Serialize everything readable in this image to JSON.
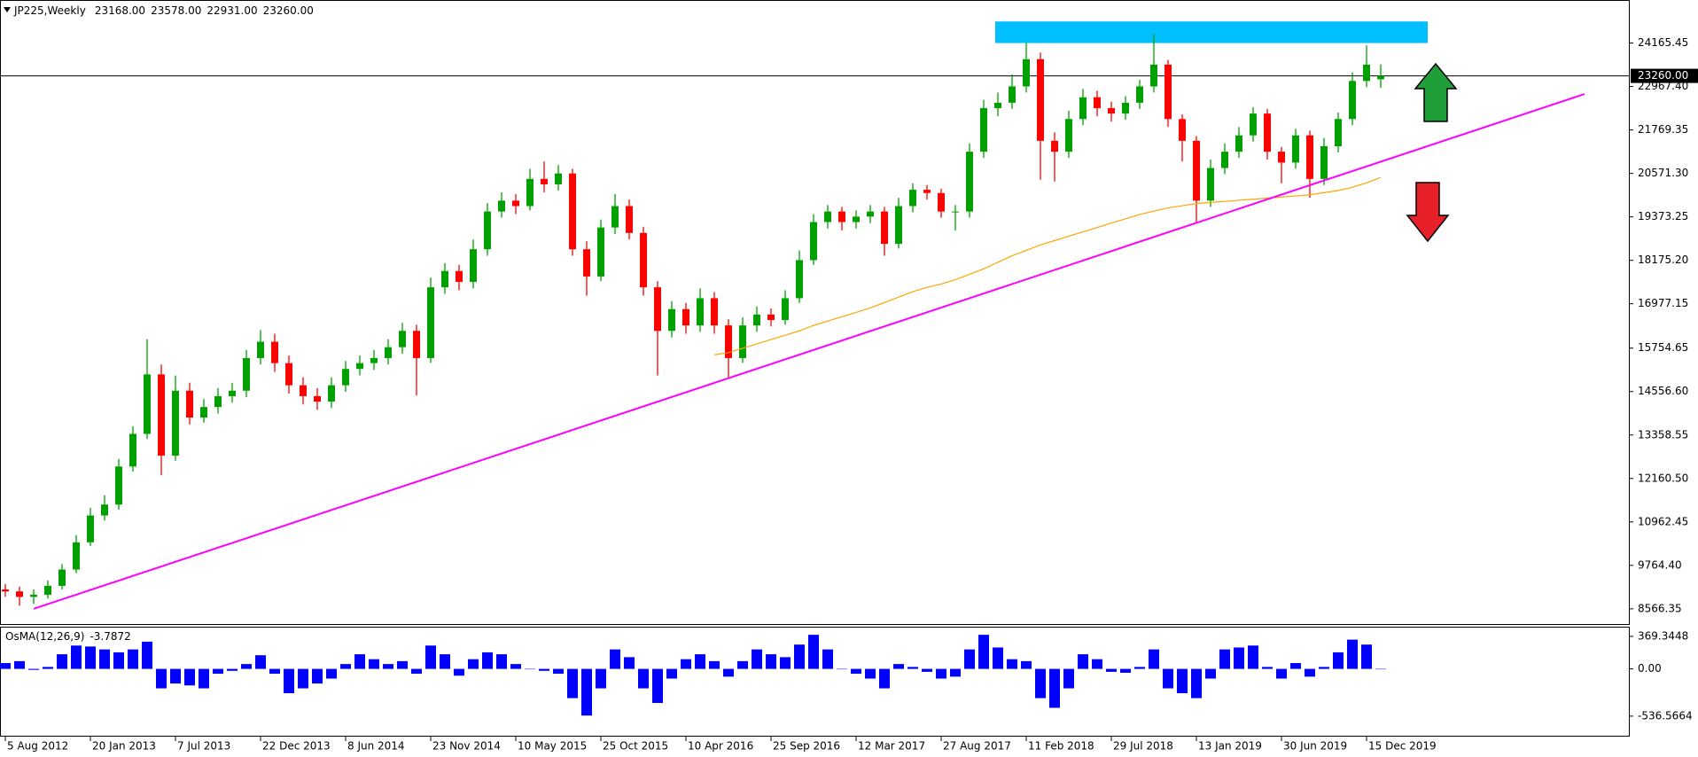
{
  "chart_data": [
    {
      "type": "candlestick",
      "title": "JP225,Weekly",
      "header_values": [
        {
          "value": 23168,
          "label": "23168.00"
        },
        {
          "value": 23578,
          "label": "23578.00"
        },
        {
          "value": 22931,
          "label": "22931.00"
        },
        {
          "value": 23260,
          "label": "23260.00"
        }
      ],
      "categories": [
        "5 Aug 2012",
        null,
        null,
        null,
        null,
        null,
        "20 Jan 2013",
        null,
        null,
        null,
        null,
        null,
        "7 Jul 2013",
        null,
        null,
        null,
        null,
        null,
        "22 Dec 2013",
        null,
        null,
        null,
        null,
        null,
        "8 Jun 2014",
        null,
        null,
        null,
        null,
        null,
        "23 Nov 2014",
        null,
        null,
        null,
        null,
        null,
        "10 May 2015",
        null,
        null,
        null,
        null,
        null,
        "25 Oct 2015",
        null,
        null,
        null,
        null,
        null,
        "10 Apr 2016",
        null,
        null,
        null,
        null,
        null,
        "25 Sep 2016",
        null,
        null,
        null,
        null,
        null,
        "12 Mar 2017",
        null,
        null,
        null,
        null,
        null,
        "27 Aug 2017",
        null,
        null,
        null,
        null,
        null,
        "11 Feb 2018",
        null,
        null,
        null,
        null,
        null,
        "29 Jul 2018",
        null,
        null,
        null,
        null,
        null,
        "13 Jan 2019",
        null,
        null,
        null,
        null,
        null,
        "30 Jun 2019",
        null,
        null,
        null,
        null,
        null,
        "15 Dec 2019",
        null
      ],
      "open": [
        9100,
        9046,
        8896,
        8955,
        9200,
        9650,
        10400,
        11140,
        11440,
        12490,
        13390,
        15030,
        12790,
        14580,
        13840,
        14130,
        14430,
        14580,
        15480,
        15930,
        15340,
        14730,
        14430,
        14280,
        14730,
        15180,
        15340,
        15480,
        15780,
        16230,
        15480,
        17430,
        17880,
        17580,
        18480,
        19520,
        19820,
        19670,
        20420,
        20270,
        20570,
        18480,
        17730,
        19080,
        19670,
        18930,
        17430,
        16230,
        16830,
        16380,
        17130,
        16380,
        15480,
        16380,
        16680,
        16530,
        17130,
        18180,
        19230,
        19520,
        19230,
        19380,
        19520,
        18630,
        19670,
        20120,
        20030,
        19520,
        19520,
        21170,
        22370,
        22520,
        22970,
        23720,
        21470,
        21170,
        22070,
        22670,
        22370,
        22220,
        22520,
        22970,
        23570,
        22070,
        21470,
        19820,
        20720,
        21170,
        21620,
        22220,
        21170,
        20870,
        21620,
        20420,
        21320,
        22070,
        23120,
        23168
      ],
      "high": [
        9250,
        9180,
        9100,
        9350,
        9800,
        10600,
        11350,
        11700,
        12700,
        13600,
        16000,
        15300,
        15000,
        14800,
        14350,
        14650,
        14800,
        15700,
        16250,
        16150,
        15550,
        14950,
        14650,
        14950,
        15400,
        15550,
        15700,
        16000,
        16450,
        16400,
        17700,
        18100,
        18050,
        18750,
        19750,
        20050,
        20000,
        20700,
        20900,
        20800,
        20700,
        18700,
        19300,
        20000,
        19850,
        19100,
        17600,
        17050,
        17000,
        17400,
        17300,
        16550,
        16600,
        16900,
        16850,
        17350,
        18450,
        19450,
        19700,
        19650,
        19550,
        19700,
        19650,
        19900,
        20300,
        20250,
        20150,
        19700,
        21400,
        22600,
        22800,
        23300,
        24170,
        23900,
        21700,
        22300,
        22900,
        22850,
        22550,
        22700,
        23150,
        24400,
        23700,
        22200,
        21600,
        20950,
        21400,
        21850,
        22400,
        22350,
        21300,
        21800,
        21750,
        21550,
        22250,
        23350,
        24100,
        23578
      ],
      "low": [
        8900,
        8650,
        8700,
        8850,
        9100,
        9550,
        10300,
        11000,
        11300,
        12350,
        13250,
        12250,
        12650,
        13650,
        13700,
        13950,
        14250,
        14400,
        15300,
        15100,
        14500,
        14200,
        14050,
        14100,
        14550,
        15000,
        15150,
        15300,
        15600,
        14450,
        15350,
        17250,
        17350,
        17400,
        18300,
        19350,
        19450,
        19550,
        20050,
        20100,
        18300,
        17200,
        17600,
        18900,
        18750,
        17200,
        15000,
        16050,
        16150,
        16200,
        16150,
        14950,
        15350,
        16200,
        16350,
        16400,
        17000,
        18050,
        19050,
        19000,
        19050,
        19200,
        18300,
        18500,
        19500,
        19850,
        19350,
        19000,
        19350,
        21000,
        22150,
        22350,
        22800,
        20400,
        20350,
        21000,
        21900,
        22150,
        22000,
        22050,
        22350,
        22800,
        21850,
        20900,
        19200,
        19650,
        20550,
        21000,
        21450,
        20950,
        20300,
        20700,
        19900,
        20250,
        21150,
        21900,
        22950,
        22931
      ],
      "close": [
        9046,
        8896,
        8955,
        9200,
        9650,
        10400,
        11140,
        11440,
        12490,
        13390,
        15030,
        12790,
        14580,
        13840,
        14130,
        14430,
        14580,
        15480,
        15930,
        15340,
        14730,
        14430,
        14280,
        14730,
        15180,
        15340,
        15480,
        15780,
        16230,
        15480,
        17430,
        17880,
        17580,
        18480,
        19520,
        19820,
        19670,
        20420,
        20270,
        20570,
        18480,
        17730,
        19080,
        19670,
        18930,
        17430,
        16230,
        16830,
        16380,
        17130,
        16380,
        15480,
        16380,
        16680,
        16530,
        17130,
        18180,
        19230,
        19520,
        19230,
        19380,
        19520,
        18630,
        19670,
        20120,
        20030,
        19520,
        19520,
        21170,
        22370,
        22520,
        22970,
        23720,
        21470,
        21170,
        22070,
        22670,
        22370,
        22220,
        22520,
        22970,
        23570,
        22070,
        21470,
        19820,
        20720,
        21170,
        21620,
        22220,
        21170,
        20870,
        21620,
        20420,
        21320,
        22070,
        23120,
        23570,
        23260
      ],
      "up_color": "#00a000",
      "down_color": "#ff0000",
      "ma": {
        "color": "#ffa500",
        "values": [
          null,
          null,
          null,
          null,
          null,
          null,
          null,
          null,
          null,
          null,
          null,
          null,
          null,
          null,
          null,
          null,
          null,
          null,
          null,
          null,
          null,
          null,
          null,
          null,
          null,
          null,
          null,
          null,
          null,
          null,
          null,
          null,
          null,
          null,
          null,
          null,
          null,
          null,
          null,
          null,
          null,
          null,
          null,
          null,
          null,
          null,
          null,
          null,
          null,
          null,
          15570,
          15630,
          15750,
          15870,
          15990,
          16110,
          16230,
          16380,
          16500,
          16620,
          16740,
          16860,
          17010,
          17160,
          17310,
          17430,
          17520,
          17640,
          17790,
          17940,
          18120,
          18300,
          18450,
          18600,
          18720,
          18840,
          18960,
          19080,
          19200,
          19320,
          19440,
          19530,
          19620,
          19680,
          19740,
          19770,
          19800,
          19830,
          19860,
          19890,
          19920,
          19950,
          19980,
          20040,
          20100,
          20190,
          20310,
          20460
        ]
      },
      "trendline": {
        "color": "#ff00ff",
        "values": [
          8566,
          22760
        ]
      },
      "resistance_zone": {
        "color": "#00bfff",
        "range": [
          24165,
          24760
        ]
      },
      "current_price": {
        "value": 23260,
        "label": "23260.00"
      },
      "ylim": [
        8147,
        25303
      ],
      "yticks": [
        {
          "value": 24165.45,
          "label": "24165.45"
        },
        {
          "value": 22967.4,
          "label": "22967.40"
        },
        {
          "value": 21769.35,
          "label": "21769.35"
        },
        {
          "value": 20571.3,
          "label": "20571.30"
        },
        {
          "value": 19373.25,
          "label": "19373.25"
        },
        {
          "value": 18175.2,
          "label": "18175.20"
        },
        {
          "value": 16977.15,
          "label": "16977.15"
        },
        {
          "value": 15754.65,
          "label": "15754.65"
        },
        {
          "value": 14556.6,
          "label": "14556.60"
        },
        {
          "value": 13358.55,
          "label": "13358.55"
        },
        {
          "value": 12160.5,
          "label": "12160.50"
        },
        {
          "value": 10962.45,
          "label": "10962.45"
        },
        {
          "value": 9764.4,
          "label": "9764.40"
        },
        {
          "value": 8566.35,
          "label": "8566.35"
        }
      ]
    },
    {
      "type": "bar",
      "title": "OsMA(12,26,9)",
      "current": -3.7872,
      "color": "#0000ff",
      "values": [
        66,
        88,
        -11,
        22,
        166,
        265,
        254,
        221,
        188,
        221,
        309,
        -221,
        -166,
        -188,
        -221,
        -55,
        -22,
        55,
        155,
        -55,
        -276,
        -221,
        -166,
        -110,
        55,
        166,
        110,
        55,
        88,
        -55,
        265,
        166,
        -77,
        110,
        188,
        166,
        55,
        0,
        -22,
        -55,
        -332,
        -530,
        -221,
        221,
        133,
        -221,
        -387,
        -110,
        110,
        166,
        88,
        -88,
        88,
        221,
        166,
        133,
        276,
        387,
        221,
        0,
        -55,
        -110,
        -221,
        55,
        22,
        -33,
        -110,
        -88,
        221,
        387,
        243,
        110,
        88,
        -332,
        -442,
        -221,
        166,
        110,
        -33,
        -44,
        22,
        221,
        -221,
        -276,
        -332,
        -110,
        221,
        243,
        265,
        22,
        -110,
        66,
        -88,
        22,
        188,
        332,
        276,
        -3.7872
      ],
      "ylim": [
        -769,
        469
      ],
      "yticks": [
        {
          "value": 369.3448,
          "label": "369.3448"
        },
        {
          "value": 0,
          "label": "0.00"
        },
        {
          "value": -536.5664,
          "label": "-536.5664"
        }
      ]
    }
  ]
}
